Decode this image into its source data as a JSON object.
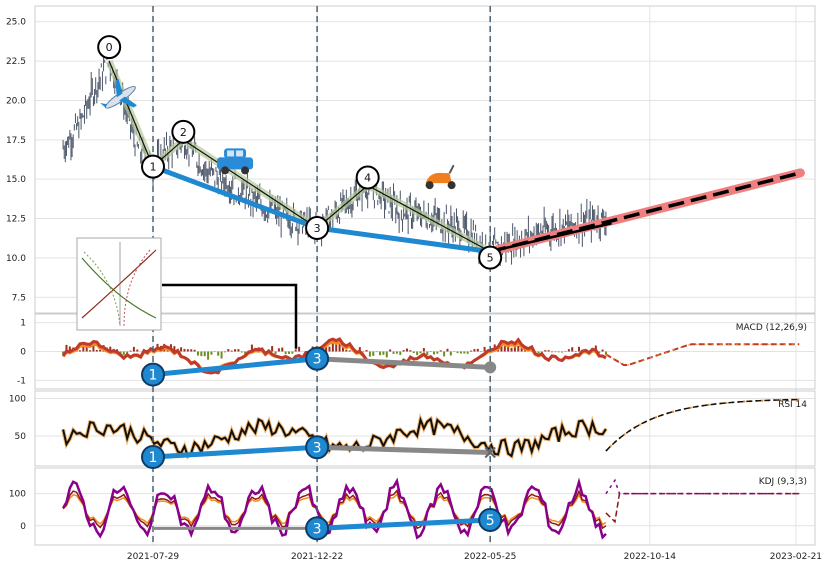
{
  "chart_data": {
    "type": "line",
    "x_ticks": [
      "2021-07-29",
      "2021-12-22",
      "2022-05-25",
      "2022-10-14",
      "2023-02-21"
    ],
    "x_range": [
      "2021-04-15",
      "2023-03-10"
    ],
    "markers_vertical": [
      "2021-07-29",
      "2021-12-22",
      "2022-05-25"
    ],
    "price_panel": {
      "ylim": [
        6.5,
        26.0
      ],
      "yticks": [
        "7.5",
        "10.0",
        "12.5",
        "15.0",
        "17.5",
        "20.0",
        "22.5",
        "25.0"
      ],
      "wave_points": [
        {
          "label": "0",
          "date": "2021-06-20",
          "price": 22.5
        },
        {
          "label": "1",
          "date": "2021-07-29",
          "price": 15.8
        },
        {
          "label": "2",
          "date": "2021-08-25",
          "price": 17.5
        },
        {
          "label": "3",
          "date": "2021-12-22",
          "price": 11.9
        },
        {
          "label": "4",
          "date": "2022-02-05",
          "price": 14.6
        },
        {
          "label": "5",
          "date": "2022-05-25",
          "price": 10.4
        }
      ],
      "trend_lines": [
        {
          "name": "lows",
          "color": "#1e88d0",
          "points": [
            [
              "2021-07-29",
              15.8
            ],
            [
              "2021-12-22",
              11.9
            ],
            [
              "2022-05-25",
              10.4
            ]
          ]
        },
        {
          "name": "forecast",
          "color": "#f08080",
          "points": [
            [
              "2022-05-25",
              10.4
            ],
            [
              "2023-02-25",
              15.4
            ]
          ]
        }
      ],
      "price_series_note": "OHLC candles from 2021-05 to 2022-09",
      "price_samples": [
        [
          "2021-05-10",
          17.0
        ],
        [
          "2021-05-25",
          18.5
        ],
        [
          "2021-06-05",
          20.5
        ],
        [
          "2021-06-20",
          22.5
        ],
        [
          "2021-07-05",
          19.5
        ],
        [
          "2021-07-15",
          17.0
        ],
        [
          "2021-07-29",
          15.8
        ],
        [
          "2021-08-10",
          16.8
        ],
        [
          "2021-08-25",
          17.5
        ],
        [
          "2021-09-15",
          15.5
        ],
        [
          "2021-10-10",
          14.5
        ],
        [
          "2021-11-10",
          13.0
        ],
        [
          "2021-12-22",
          11.9
        ],
        [
          "2022-01-10",
          13.0
        ],
        [
          "2022-02-05",
          14.6
        ],
        [
          "2022-03-05",
          13.0
        ],
        [
          "2022-04-05",
          12.5
        ],
        [
          "2022-05-10",
          11.5
        ],
        [
          "2022-05-25",
          10.4
        ],
        [
          "2022-06-15",
          11.0
        ],
        [
          "2022-07-15",
          11.8
        ],
        [
          "2022-08-15",
          12.2
        ],
        [
          "2022-09-05",
          12.5
        ]
      ]
    },
    "macd_panel": {
      "label": "MACD (12,26,9)",
      "ylim": [
        -1.3,
        1.3
      ],
      "yticks": [
        "1",
        "0",
        "-1"
      ],
      "divergences": [
        {
          "label": "1",
          "date": "2021-07-29",
          "value": -0.8
        },
        {
          "label": "3",
          "date": "2021-12-22",
          "value": -0.25
        }
      ]
    },
    "rsi_panel": {
      "label": "RSI 14",
      "ylim": [
        10,
        110
      ],
      "yticks": [
        "100",
        "50"
      ],
      "divergences": [
        {
          "label": "1",
          "date": "2021-07-29",
          "value": 22
        },
        {
          "label": "3",
          "date": "2021-12-22",
          "value": 35
        }
      ]
    },
    "kdj_panel": {
      "label": "KDJ (9,3,3)",
      "ylim": [
        -60,
        180
      ],
      "yticks": [
        "100",
        "0"
      ],
      "divergences": [
        {
          "label": "3",
          "date": "2021-12-22",
          "value": -8
        },
        {
          "label": "5",
          "date": "2022-05-25",
          "value": 18
        }
      ]
    }
  }
}
